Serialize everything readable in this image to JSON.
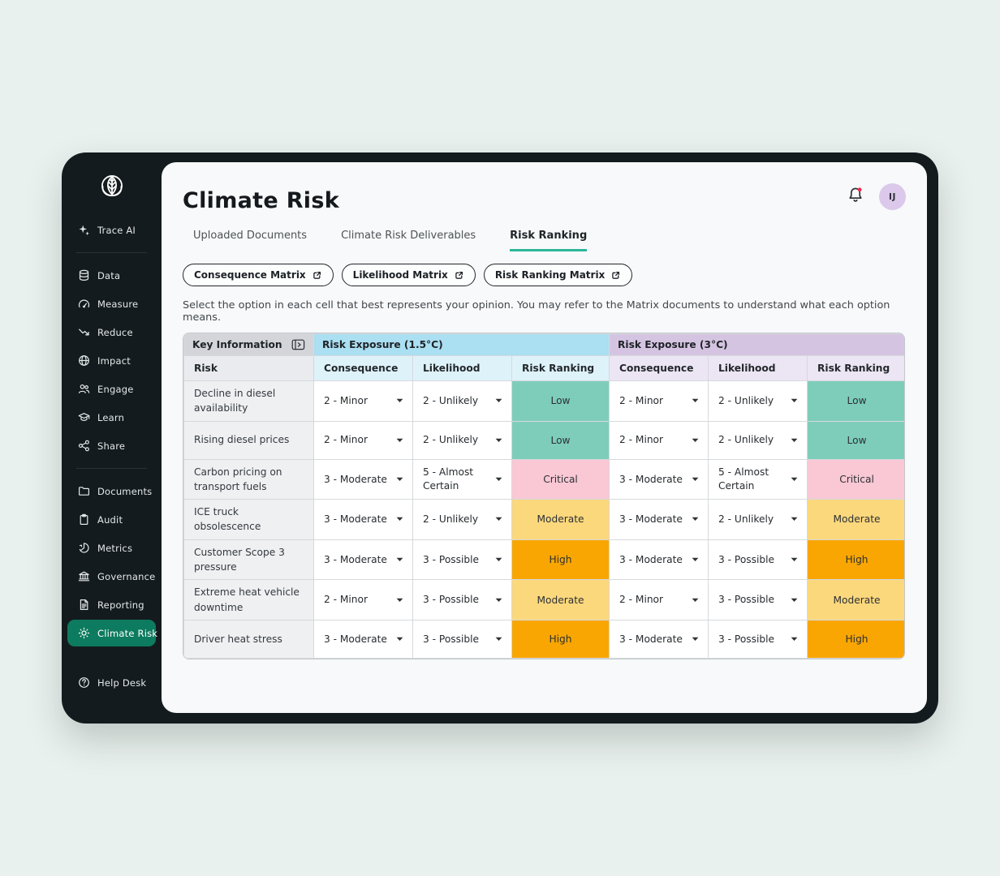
{
  "sidebar": {
    "primary": [
      {
        "label": "Trace AI",
        "icon": "sparkle-icon"
      }
    ],
    "section_platform": [
      {
        "label": "Data",
        "icon": "database-icon"
      },
      {
        "label": "Measure",
        "icon": "gauge-icon"
      },
      {
        "label": "Reduce",
        "icon": "trend-down-icon"
      },
      {
        "label": "Impact",
        "icon": "globe-icon"
      },
      {
        "label": "Engage",
        "icon": "people-icon"
      },
      {
        "label": "Learn",
        "icon": "graduation-cap-icon"
      },
      {
        "label": "Share",
        "icon": "share-nodes-icon"
      }
    ],
    "section_workspace": [
      {
        "label": "Documents",
        "icon": "folder-icon"
      },
      {
        "label": "Audit",
        "icon": "clipboard-icon"
      },
      {
        "label": "Metrics",
        "icon": "donut-chart-icon"
      },
      {
        "label": "Governance",
        "icon": "bank-icon"
      },
      {
        "label": "Reporting",
        "icon": "report-icon"
      },
      {
        "label": "Climate Risk",
        "icon": "sun-icon",
        "active": true
      }
    ],
    "footer": [
      {
        "label": "Help Desk",
        "icon": "question-circle-icon"
      }
    ]
  },
  "header": {
    "title": "Climate Risk",
    "avatar_initials": "IJ",
    "has_unread_notification": true
  },
  "tabs": [
    {
      "label": "Uploaded Documents",
      "active": false
    },
    {
      "label": "Climate Risk Deliverables",
      "active": false
    },
    {
      "label": "Risk Ranking",
      "active": true
    }
  ],
  "matrix_buttons": [
    {
      "label": "Consequence Matrix",
      "icon": "external-link-icon"
    },
    {
      "label": "Likelihood Matrix",
      "icon": "external-link-icon"
    },
    {
      "label": "Risk Ranking Matrix",
      "icon": "external-link-icon"
    }
  ],
  "instruction": "Select the option in each cell that best represents your opinion. You may refer to the Matrix documents to understand what each option means.",
  "table": {
    "key_information_header": "Key Information",
    "group_headers": [
      {
        "label": "Risk Exposure (1.5°C)"
      },
      {
        "label": "Risk Exposure (3°C)"
      }
    ],
    "sub_headers": [
      "Risk",
      "Consequence",
      "Likelihood",
      "Risk Ranking",
      "Consequence",
      "Likelihood",
      "Risk Ranking"
    ],
    "ranking_colors": {
      "Low": "#7ECDBB",
      "Moderate": "#FCD87D",
      "High": "#F9A602",
      "Critical": "#F9C8D4"
    },
    "rows": [
      {
        "risk": "Decline in diesel availability",
        "c15": "2 - Minor",
        "l15": "2 - Unlikely",
        "r15": "Low",
        "c3": "2 - Minor",
        "l3": "2 - Unlikely",
        "r3": "Low"
      },
      {
        "risk": "Rising diesel prices",
        "c15": "2 - Minor",
        "l15": "2 - Unlikely",
        "r15": "Low",
        "c3": "2 - Minor",
        "l3": "2 - Unlikely",
        "r3": "Low"
      },
      {
        "risk": "Carbon pricing on transport fuels",
        "c15": "3 - Moderate",
        "l15": "5 - Almost Certain",
        "r15": "Critical",
        "c3": "3 - Moderate",
        "l3": "5 - Almost Certain",
        "r3": "Critical"
      },
      {
        "risk": "ICE truck obsolescence",
        "c15": "3 - Moderate",
        "l15": "2 - Unlikely",
        "r15": "Moderate",
        "c3": "3 - Moderate",
        "l3": "2 - Unlikely",
        "r3": "Moderate"
      },
      {
        "risk": "Customer Scope 3 pressure",
        "c15": "3 - Moderate",
        "l15": "3 - Possible",
        "r15": "High",
        "c3": "3 - Moderate",
        "l3": "3 - Possible",
        "r3": "High"
      },
      {
        "risk": "Extreme heat vehicle downtime",
        "c15": "2 - Minor",
        "l15": "3 - Possible",
        "r15": "Moderate",
        "c3": "2 - Minor",
        "l3": "3 - Possible",
        "r3": "Moderate"
      },
      {
        "risk": "Driver heat stress",
        "c15": "3 - Moderate",
        "l15": "3 - Possible",
        "r15": "High",
        "c3": "3 - Moderate",
        "l3": "3 - Possible",
        "r3": "High"
      }
    ]
  },
  "colors": {
    "page_background": "#E9F1EE",
    "frame_background": "#141B1E",
    "panel_background": "#F7F9FA",
    "active_nav": "#0D7B5F",
    "tab_underline": "#2CB69A",
    "header_blue": "#ABDFF2",
    "subheader_blue": "#DEF2FA",
    "header_purple": "#D5C4E1",
    "subheader_purple": "#ECE5F3",
    "header_grey": "#D3D5D8",
    "notification_dot": "#F12A4E",
    "avatar_background": "#DBC8EA"
  }
}
